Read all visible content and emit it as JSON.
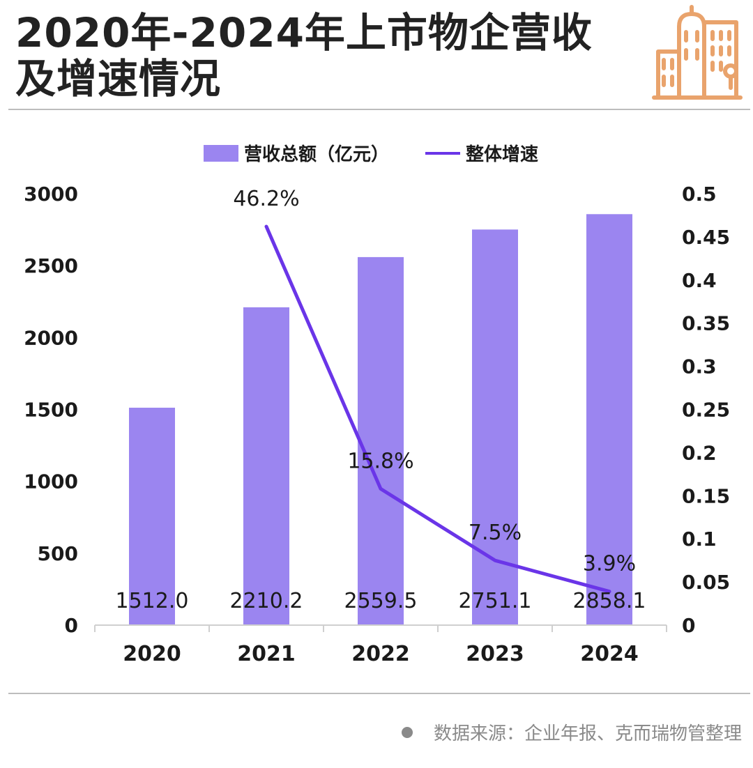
{
  "header": {
    "title": "2020年-2024年上市物企营收及增速情况"
  },
  "colors": {
    "bar": "#9b85f0",
    "line": "#6a35e8",
    "icon": "#e9a36c",
    "axis": "#cfcfcf",
    "text": "#1a1a1a"
  },
  "chart_data": {
    "type": "bar",
    "categories": [
      "2020",
      "2021",
      "2022",
      "2023",
      "2024"
    ],
    "series": [
      {
        "name": "营收总额（亿元）",
        "type": "bar",
        "axis": "left",
        "values": [
          1512.0,
          2210.2,
          2559.5,
          2751.1,
          2858.1
        ],
        "labels": [
          "1512.0",
          "2210.2",
          "2559.5",
          "2751.1",
          "2858.1"
        ]
      },
      {
        "name": "整体增速",
        "type": "line",
        "axis": "right",
        "values": [
          null,
          0.462,
          0.158,
          0.075,
          0.039
        ],
        "labels": [
          "",
          "46.2%",
          "15.8%",
          "7.5%",
          "3.9%"
        ]
      }
    ],
    "y_left": {
      "min": 0,
      "max": 3000,
      "ticks": [
        "0",
        "500",
        "1000",
        "1500",
        "2000",
        "2500",
        "3000"
      ]
    },
    "y_right": {
      "min": 0,
      "max": 0.5,
      "ticks": [
        "0",
        "0.05",
        "0.1",
        "0.15",
        "0.2",
        "0.25",
        "0.3",
        "0.35",
        "0.4",
        "0.45",
        "0.5"
      ]
    },
    "legend_position": "top",
    "grid": false
  },
  "footer": {
    "source": "数据来源：企业年报、克而瑞物管整理"
  }
}
